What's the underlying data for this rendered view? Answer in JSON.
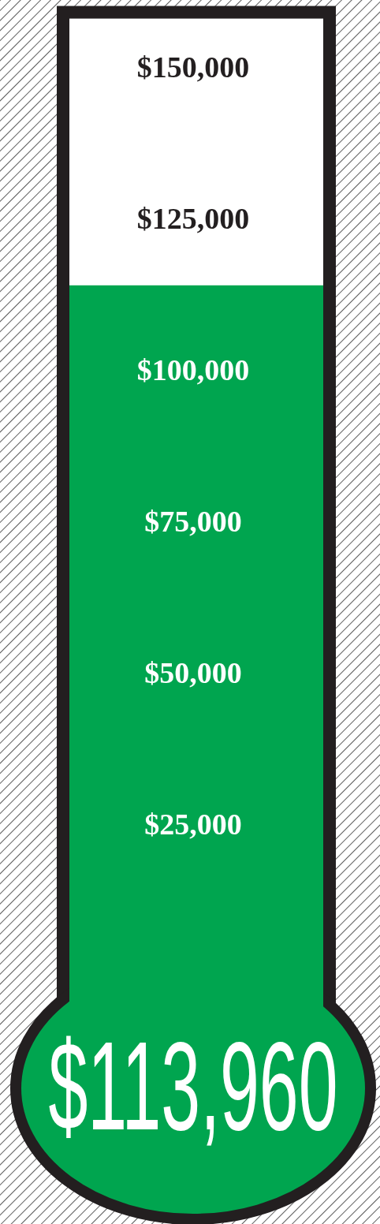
{
  "chart_data": {
    "type": "bar",
    "categories": [
      null
    ],
    "values": [
      113960
    ],
    "color": "#00a54f",
    "value_labels": [
      "$113,960"
    ],
    "ylim": [
      0,
      158000
    ],
    "yticks": [
      {
        "value": 25000,
        "label": "$25,000"
      },
      {
        "value": 50000,
        "label": "$50,000"
      },
      {
        "value": 75000,
        "label": "$75,000"
      },
      {
        "value": 100000,
        "label": "$100,000"
      },
      {
        "value": 125000,
        "label": "$125,000"
      },
      {
        "value": 150000,
        "label": "$150,000"
      }
    ]
  }
}
